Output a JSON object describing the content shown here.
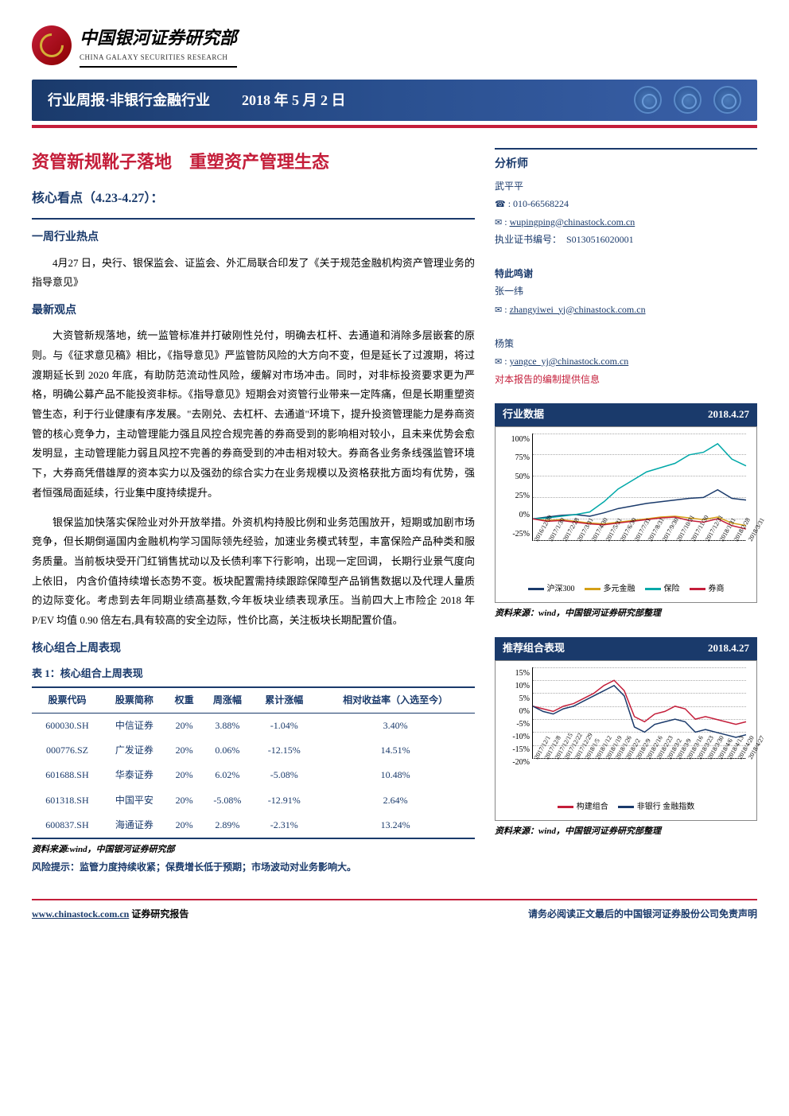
{
  "logo": {
    "cn": "中国银河证券研究部",
    "en": "CHINA GALAXY SECURITIES RESEARCH"
  },
  "titleBar": {
    "left": "行业周报·非银行金融行业",
    "date": "2018 年 5 月 2 日"
  },
  "mainTitle": "资管新规靴子落地　重塑资产管理生态",
  "subTitle": "核心看点（4.23-4.27）：",
  "sec1Head": "一周行业热点",
  "sec1Body": "4月27 日，央行、银保监会、证监会、外汇局联合印发了《关于规范金融机构资产管理业务的指导意见》",
  "sec2Head": "最新观点",
  "sec2Body1": "大资管新规落地，统一监管标准并打破刚性兑付，明确去杠杆、去通道和消除多层嵌套的原则。与《征求意见稿》相比，《指导意见》严监管防风险的大方向不变，但是延长了过渡期，将过渡期延长到 2020 年底，有助防范流动性风险，缓解对市场冲击。同时，对非标投资要求更为严格，明确公募产品不能投资非标。《指导意见》短期会对资管行业带来一定阵痛，但是长期重塑资管生态，利于行业健康有序发展。\"去刚兑、去杠杆、去通道\"环境下，提升投资管理能力是券商资管的核心竞争力，主动管理能力强且风控合规完善的券商受到的影响相对较小，且未来优势会愈发明显，主动管理能力弱且风控不完善的券商受到的冲击相对较大。券商各业务条线强监管环境下，大券商凭借雄厚的资本实力以及强劲的综合实力在业务规模以及资格获批方面均有优势，强者恒强局面延续，行业集中度持续提升。",
  "sec2Body2": "银保监加快落实保险业对外开放举措。外资机构持股比例和业务范围放开，短期或加剧市场竞争，但长期倒逼国内金融机构学习国际领先经验，加速业务模式转型，丰富保险产品种类和服务质量。当前板块受开门红销售扰动以及长债利率下行影响，出现一定回调， 长期行业景气度向上依旧， 内含价值持续增长态势不变。板块配置需持续跟踪保障型产品销售数据以及代理人量质的边际变化。考虑到去年同期业绩高基数,今年板块业绩表现承压。当前四大上市险企 2018 年 P/EV 均值 0.90 倍左右,具有较高的安全边际，性价比高，关注板块长期配置价值。",
  "sec3Head": "核心组合上周表现",
  "tableTitle": "表 1：核心组合上周表现",
  "tableCols": [
    "股票代码",
    "股票简称",
    "权重",
    "周涨幅",
    "累计涨幅",
    "相对收益率（入选至今）"
  ],
  "tableRows": [
    [
      "600030.SH",
      "中信证券",
      "20%",
      "3.88%",
      "-1.04%",
      "3.40%"
    ],
    [
      "000776.SZ",
      "广发证券",
      "20%",
      "0.06%",
      "-12.15%",
      "14.51%"
    ],
    [
      "601688.SH",
      "华泰证券",
      "20%",
      "6.02%",
      "-5.08%",
      "10.48%"
    ],
    [
      "601318.SH",
      "中国平安",
      "20%",
      "-5.08%",
      "-12.91%",
      "2.64%"
    ],
    [
      "600837.SH",
      "海通证券",
      "20%",
      "2.89%",
      "-2.31%",
      "13.24%"
    ]
  ],
  "tableSource": "资料来源:wind，中国银河证券研究部",
  "riskText": "风险提示：监管力度持续收紧；保费增长低于预期；市场波动对业务影响大。",
  "analyst": {
    "head": "分析师",
    "name": "武平平",
    "phone": "010-66568224",
    "email": "wupingping@chinastock.com.cn",
    "cert": "执业证书编号：　S0130516020001",
    "thanksHead": "特此鸣谢",
    "thanks1Name": "张一纬",
    "thanks1Email": "zhangyiwei_yj@chinastock.com.cn",
    "thanks2Name": "杨策",
    "thanks2Email": "yangce_yj@chinastock.com.cn",
    "thanksNote": "对本报告的编制提供信息"
  },
  "chart1": {
    "title": "行业数据",
    "date": "2018.4.27",
    "yticks": [
      "100%",
      "75%",
      "50%",
      "25%",
      "0%",
      "-25%"
    ],
    "ymin": -25,
    "ymax": 100,
    "xlabels": [
      "2016/12/30",
      "2017/1/30",
      "2017/2/28",
      "2017/3/31",
      "2017/4/30",
      "2017/5/31",
      "2017/6/30",
      "2017/7/31",
      "2017/8/31",
      "2017/9/30",
      "2017/10/31",
      "2017/11/30",
      "2017/12/31",
      "2018/1/31",
      "2018/2/28",
      "2018/3/31"
    ],
    "series": [
      {
        "name": "沪深300",
        "color": "#1a3a6b",
        "values": [
          0,
          2,
          4,
          5,
          3,
          7,
          12,
          15,
          18,
          20,
          22,
          24,
          25,
          34,
          24,
          22
        ]
      },
      {
        "name": "多元金融",
        "color": "#d4a017",
        "values": [
          0,
          -2,
          -1,
          -3,
          -5,
          -6,
          -4,
          -2,
          0,
          2,
          3,
          1,
          -1,
          2,
          -5,
          -8
        ]
      },
      {
        "name": "保险",
        "color": "#00a8a8",
        "values": [
          0,
          1,
          3,
          5,
          8,
          20,
          35,
          45,
          55,
          60,
          65,
          75,
          78,
          88,
          70,
          62
        ]
      },
      {
        "name": "券商",
        "color": "#c41e3a",
        "values": [
          0,
          -3,
          -2,
          -4,
          -6,
          -7,
          -5,
          -3,
          -1,
          1,
          2,
          -2,
          -4,
          0,
          -8,
          -12
        ]
      }
    ],
    "source": "资料来源：wind，中国银河证券研究部整理"
  },
  "chart2": {
    "title": "推荐组合表现",
    "date": "2018.4.27",
    "yticks": [
      "15%",
      "10%",
      "5%",
      "0%",
      "-5%",
      "-10%",
      "-15%",
      "-20%"
    ],
    "ymin": -20,
    "ymax": 15,
    "xlabels": [
      "2017/12/1",
      "2017/12/8",
      "2017/12/15",
      "2017/12/22",
      "2017/12/29",
      "2018/1/5",
      "2018/1/12",
      "2018/1/19",
      "2018/1/26",
      "2018/2/2",
      "2018/2/9",
      "2018/2/16",
      "2018/2/23",
      "2018/3/2",
      "2018/3/9",
      "2018/3/16",
      "2018/3/23",
      "2018/3/30",
      "2018/4/6",
      "2018/4/13",
      "2018/4/20",
      "2018/4/27"
    ],
    "series": [
      {
        "name": "构建组合",
        "color": "#c41e3a",
        "values": [
          0,
          -1,
          -2,
          0,
          1,
          3,
          5,
          8,
          10,
          6,
          -4,
          -6,
          -3,
          -2,
          0,
          -1,
          -5,
          -4,
          -5,
          -6,
          -7,
          -6
        ]
      },
      {
        "name": "非银行 金融指数",
        "color": "#1a3a6b",
        "values": [
          0,
          -2,
          -3,
          -1,
          0,
          2,
          4,
          6,
          8,
          4,
          -8,
          -10,
          -7,
          -6,
          -5,
          -6,
          -10,
          -9,
          -10,
          -11,
          -12,
          -11
        ]
      }
    ],
    "source": "资料来源：wind，中国银河证券研究部整理"
  },
  "footer": {
    "link": "www.chinastock.com.cn",
    "linkSuffix": " 证券研究报告",
    "right": "请务必阅读正文最后的中国银河证券股份公司免责声明"
  }
}
